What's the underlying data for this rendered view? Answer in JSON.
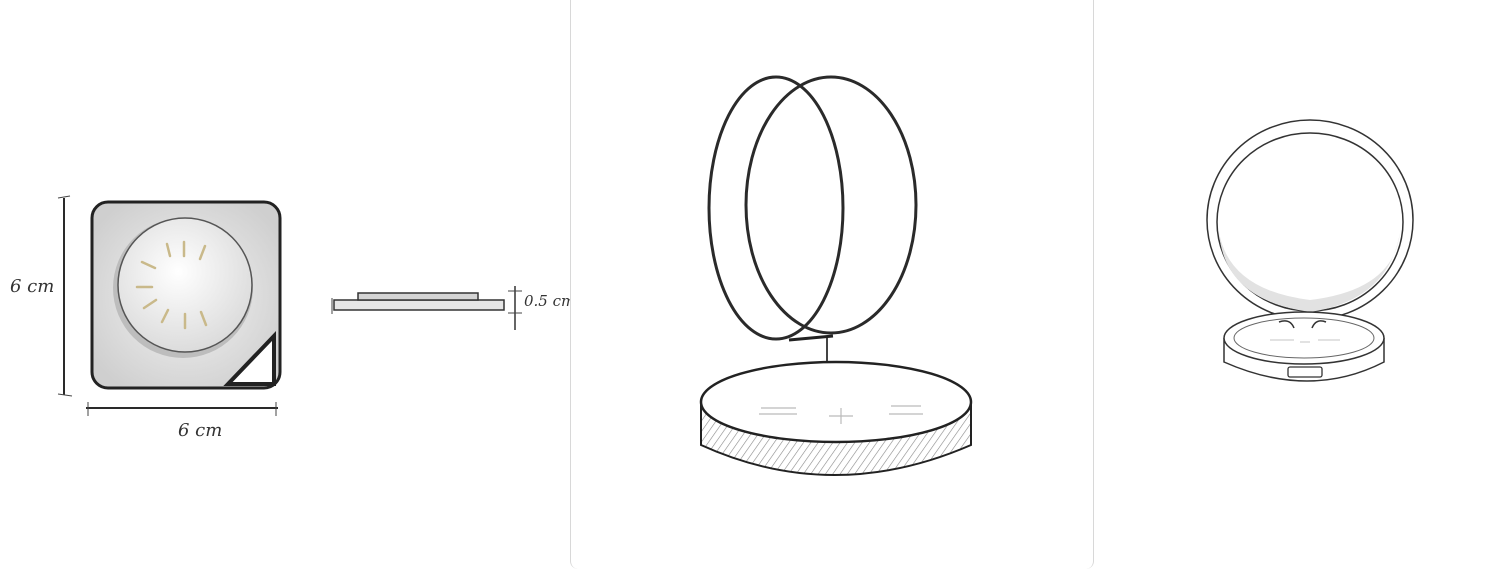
{
  "sketch_top_view": {
    "height_label": "6 cm",
    "width_label": "6 cm"
  },
  "sketch_side_view": {
    "thickness_label": "0.5 cm"
  },
  "colors": {
    "ink": "#2a2a2a",
    "shade": "#d9d9d9",
    "accent": "#c9b98a",
    "divider": "#d8d8d8"
  }
}
